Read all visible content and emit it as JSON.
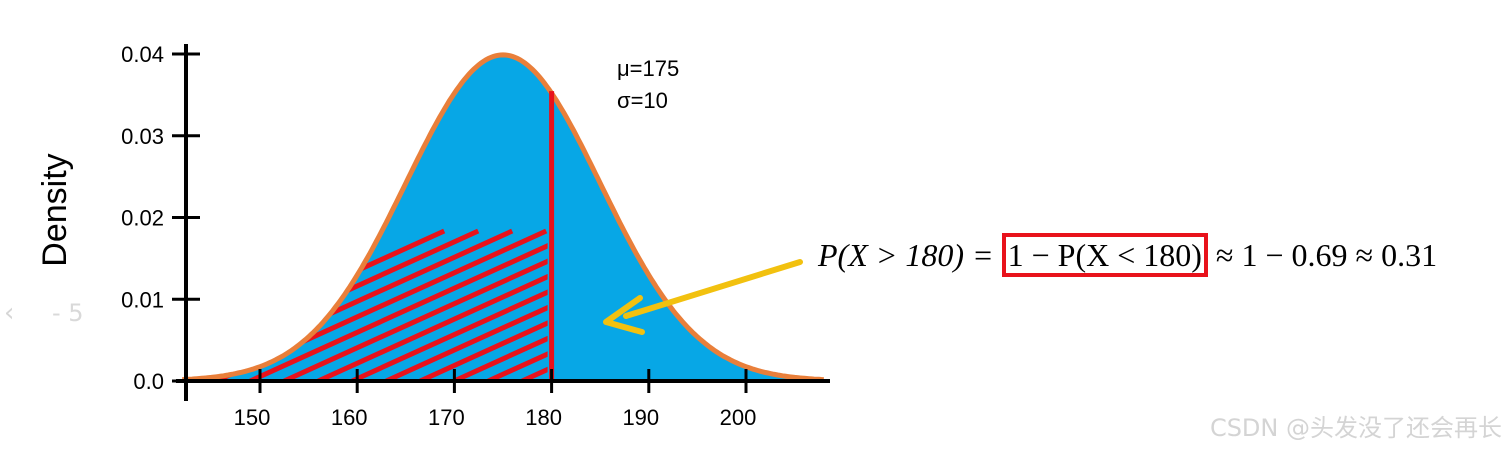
{
  "chart_data": {
    "type": "area",
    "distribution": "normal",
    "ylabel": "Density",
    "xlabel": "",
    "x_ticks": [
      150,
      160,
      170,
      180,
      190,
      200
    ],
    "y_ticks": [
      0.0,
      0.01,
      0.02,
      0.03,
      0.04
    ],
    "y_tick_labels": [
      "0.0",
      "0.01",
      "0.02",
      "0.03",
      "0.04"
    ],
    "xlim": [
      142,
      208
    ],
    "ylim": [
      0,
      0.042
    ],
    "mu": 175,
    "sigma": 10,
    "mu_label": "μ=175",
    "sigma_label": "σ=10",
    "cutoff_x": 180,
    "hatched_region": "x < 180",
    "colors": {
      "fill": "#07a7e6",
      "curve": "#e97f3a",
      "hatch": "#e8121b",
      "arrow": "#f2c10f"
    }
  },
  "formula": {
    "lhs": "P(X > 180) = ",
    "boxed": "1 − P(X < 180)",
    "rhs": " ≈ 1 − 0.69 ≈ 0.31"
  },
  "overlay": {
    "watermark": "CSDN @头发没了还会再长",
    "nav_back_icon": "‹",
    "nav_counter": "- 5"
  }
}
